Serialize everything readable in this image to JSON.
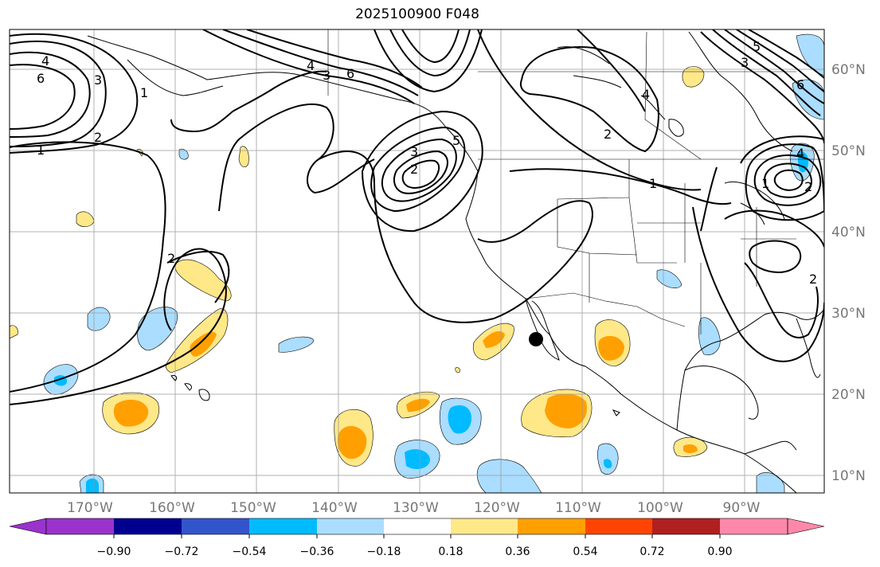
{
  "title": "2025100900 F048",
  "lon_labels": [
    "170°W",
    "160°W",
    "150°W",
    "140°W",
    "130°W",
    "120°W",
    "110°W",
    "100°W",
    "90°W"
  ],
  "lat_labels": [
    "60°N",
    "50°N",
    "40°N",
    "30°N",
    "20°N",
    "10°N"
  ],
  "colorbar": {
    "colors": [
      "#9933cc",
      "#000090",
      "#3355cc",
      "#00bbff",
      "#aaddff",
      "#ffffff",
      "#ffe888",
      "#ffa000",
      "#ff4400",
      "#b02020",
      "#ff88aa"
    ],
    "labels": [
      "−0.90",
      "−0.72",
      "−0.54",
      "−0.36",
      "−0.18",
      "0.18",
      "0.36",
      "0.54",
      "0.72",
      "0.90"
    ]
  },
  "contour_labels": [
    "4",
    "6",
    "3",
    "2",
    "1",
    "2",
    "3",
    "4",
    "6",
    "5",
    "3",
    "2",
    "1",
    "2",
    "1",
    "4",
    "6",
    "5",
    "4",
    "3",
    "1",
    "2",
    "2"
  ],
  "colors": {
    "contour": "#000000",
    "grid": "#999999",
    "coast": "#000000"
  }
}
